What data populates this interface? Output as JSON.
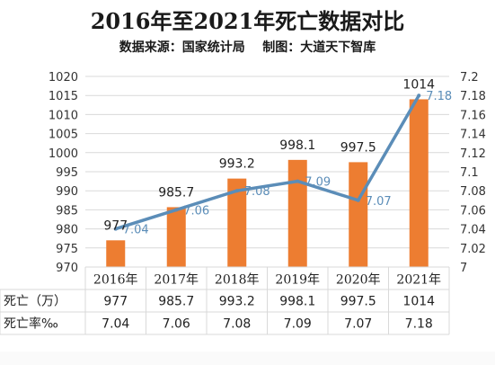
{
  "header": {
    "title": "2016年至2021年死亡数据对比",
    "subtitle": "数据来源：国家统计局    制图：大道天下智库"
  },
  "chart_data": {
    "type": "bar+line",
    "categories": [
      "2016年",
      "2017年",
      "2018年",
      "2019年",
      "2020年",
      "2021年"
    ],
    "series": [
      {
        "name": "死亡（万）",
        "type": "bar",
        "axis": "left",
        "values": [
          977,
          985.7,
          993.2,
          998.1,
          997.5,
          1014
        ],
        "labels": [
          "977",
          "985.7",
          "993.2",
          "998.1",
          "997.5",
          "1014"
        ]
      },
      {
        "name": "死亡率‰",
        "type": "line",
        "axis": "right",
        "values": [
          7.04,
          7.06,
          7.08,
          7.09,
          7.07,
          7.18
        ],
        "labels": [
          "7.04",
          "7.06",
          "7.08",
          "7.09",
          "7.07",
          "7.18"
        ]
      }
    ],
    "y_left": {
      "min": 970,
      "max": 1020,
      "step": 5,
      "ticks": [
        "970",
        "975",
        "980",
        "985",
        "990",
        "995",
        "1000",
        "1005",
        "1010",
        "1015",
        "1020"
      ]
    },
    "y_right": {
      "min": 7.0,
      "max": 7.2,
      "step": 0.02,
      "ticks": [
        "7",
        "7.02",
        "7.04",
        "7.06",
        "7.08",
        "7.1",
        "7.12",
        "7.14",
        "7.16",
        "7.18",
        "7.2"
      ]
    },
    "colors": {
      "bar": "#ED7D31",
      "line": "#5B8DB8",
      "grid": "#D9D9D9",
      "line_label": "#5B8DB8"
    },
    "grid": true,
    "legend": "table-below"
  }
}
